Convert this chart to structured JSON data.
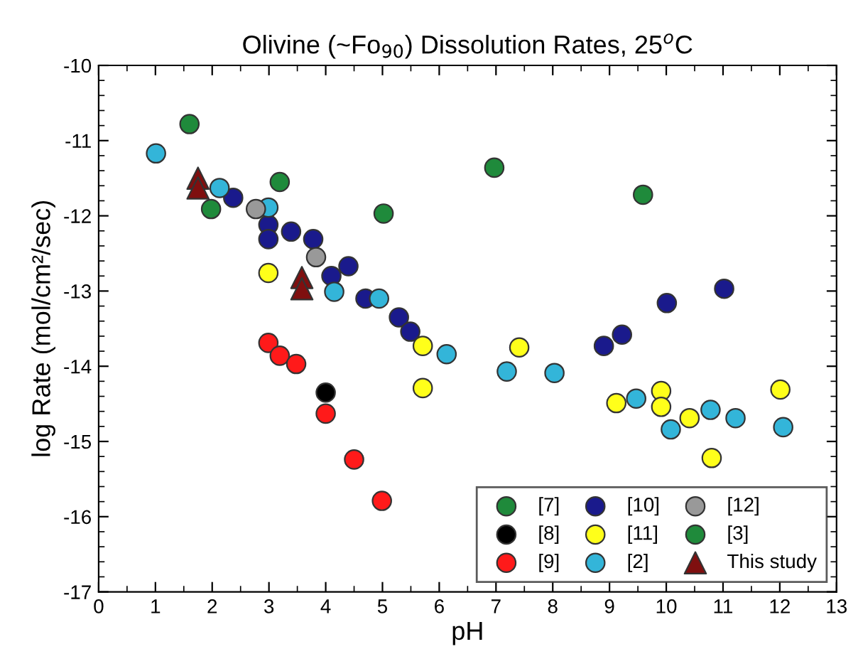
{
  "chart_data": {
    "type": "scatter",
    "title": "Olivine (~Fo$_{90}$) Dissolution Rates, 25$^{o}$C",
    "xlabel": "pH",
    "ylabel": "log Rate (mol/cm²/sec)",
    "xlim": [
      0,
      13
    ],
    "ylim": [
      -17,
      -10
    ],
    "xticks": [
      0,
      1,
      2,
      3,
      4,
      5,
      6,
      7,
      8,
      9,
      10,
      11,
      12,
      13
    ],
    "yticks": [
      -17,
      -16,
      -15,
      -14,
      -13,
      -12,
      -11,
      -10
    ],
    "grid": false,
    "legend": "bottom right",
    "marker": "circle",
    "series": [
      {
        "name": "[7]",
        "color": "#1f8a3b",
        "x": [
          1.6,
          3.19,
          5.02
        ],
        "values": [
          -10.78,
          -11.55,
          -11.97
        ]
      },
      {
        "name": "[8]",
        "color": "#000000",
        "x": [
          4.0
        ],
        "values": [
          -14.35
        ]
      },
      {
        "name": "[9]",
        "color": "#ff1a1a",
        "x": [
          2.99,
          3.19,
          3.48,
          4.0,
          4.5,
          4.99
        ],
        "values": [
          -13.69,
          -13.86,
          -13.97,
          -14.63,
          -15.24,
          -15.79
        ]
      },
      {
        "name": "[10]",
        "color": "#1a1a8c",
        "x": [
          2.37,
          2.99,
          2.99,
          3.39,
          3.78,
          4.1,
          4.4,
          4.7,
          5.29,
          5.49,
          8.9,
          9.22,
          10.01,
          11.02
        ],
        "values": [
          -11.76,
          -12.12,
          -12.31,
          -12.21,
          -12.31,
          -12.8,
          -12.67,
          -13.1,
          -13.35,
          -13.54,
          -13.73,
          -13.58,
          -13.16,
          -12.97
        ]
      },
      {
        "name": "[11]",
        "color": "#ffff1a",
        "x": [
          2.99,
          5.71,
          5.71,
          7.41,
          9.12,
          9.91,
          9.91,
          10.41,
          10.8,
          12.01
        ],
        "values": [
          -12.76,
          -13.73,
          -14.29,
          -13.75,
          -14.49,
          -14.33,
          -14.54,
          -14.69,
          -15.22,
          -14.31
        ]
      },
      {
        "name": "[2]",
        "color": "#33b5d9",
        "x": [
          1.01,
          2.13,
          2.99,
          4.15,
          4.94,
          6.13,
          7.19,
          8.03,
          9.47,
          10.08,
          10.78,
          11.22,
          12.06
        ],
        "values": [
          -11.17,
          -11.63,
          -11.89,
          -13.01,
          -13.1,
          -13.84,
          -14.07,
          -14.09,
          -14.43,
          -14.84,
          -14.58,
          -14.69,
          -14.81
        ]
      },
      {
        "name": "[12]",
        "color": "#999999",
        "x": [
          2.77,
          3.83
        ],
        "values": [
          -11.91,
          -12.55
        ]
      },
      {
        "name": "[3]",
        "color": "#1f8a3b",
        "x": [
          1.98,
          6.97,
          9.59
        ],
        "values": [
          -11.91,
          -11.36,
          -11.72
        ]
      },
      {
        "name": "This study",
        "color": "#7f0f0f",
        "marker": "triangle",
        "x": [
          1.75,
          1.75,
          3.58,
          3.58
        ],
        "values": [
          -11.5,
          -11.63,
          -12.82,
          -12.97
        ]
      }
    ]
  }
}
